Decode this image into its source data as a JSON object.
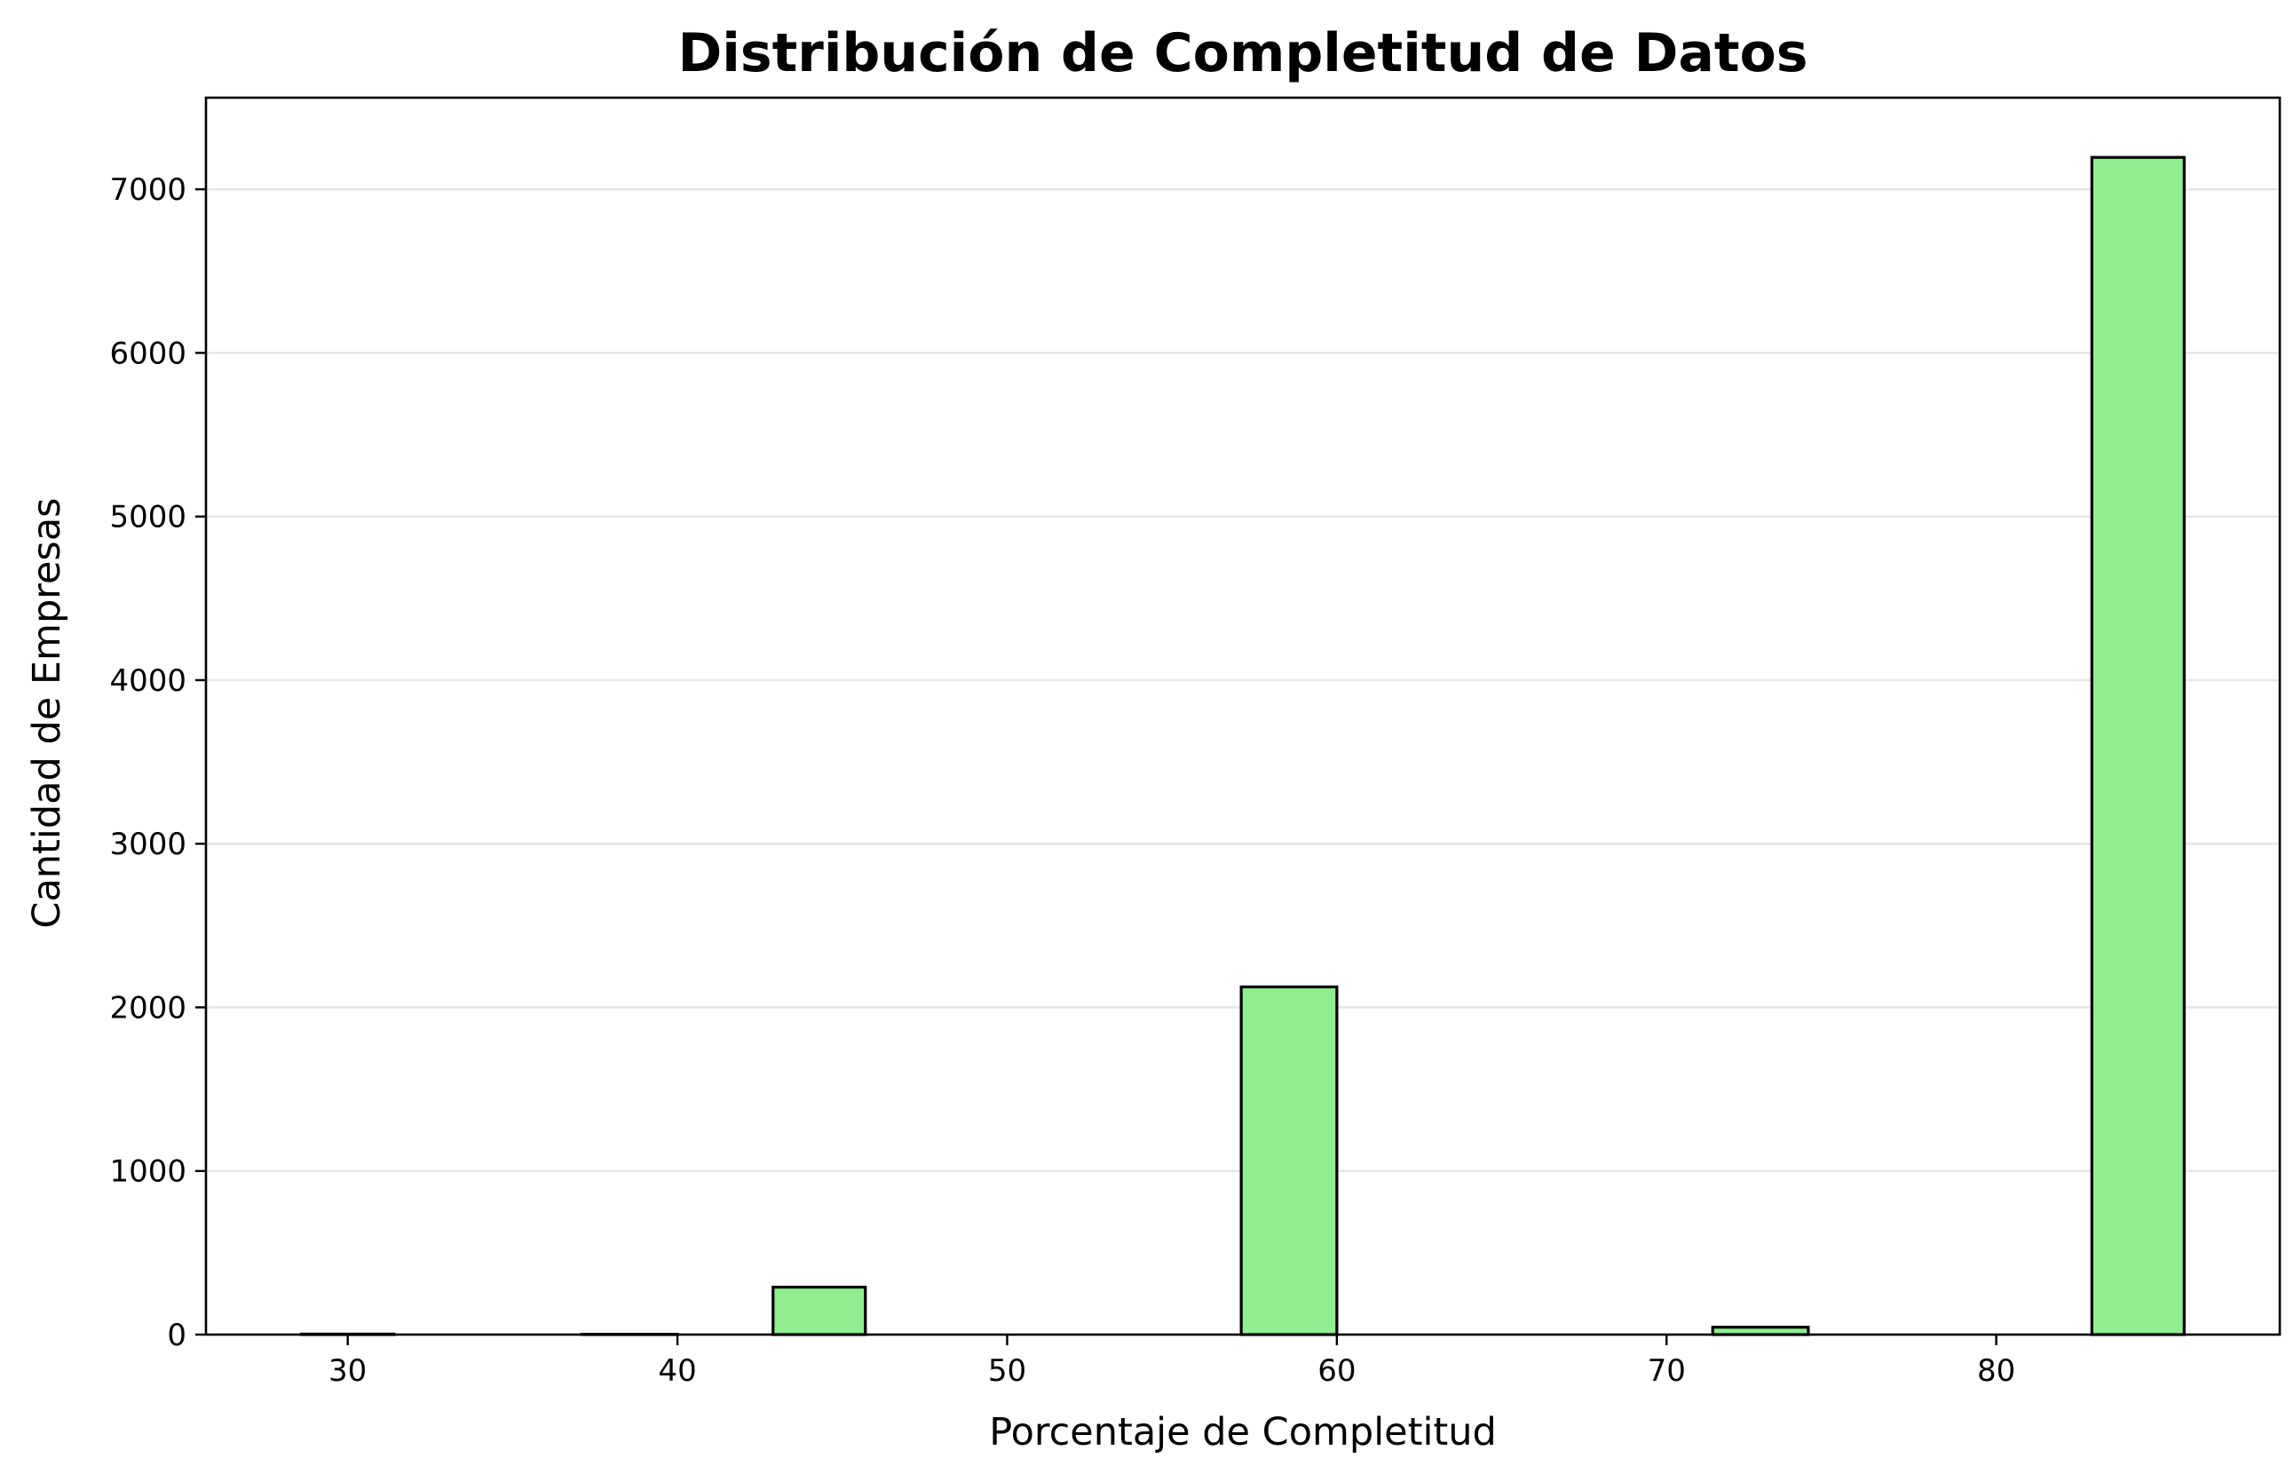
{
  "chart_data": {
    "type": "bar",
    "title": "Distribución de Completitud de Datos",
    "xlabel": "Porcentaje de Completitud",
    "ylabel": "Cantidad de Empresas",
    "xlim": [
      25.7,
      88.6
    ],
    "ylim": [
      0,
      7560
    ],
    "xticks": [
      30,
      40,
      50,
      60,
      70,
      80
    ],
    "yticks": [
      0,
      1000,
      2000,
      3000,
      4000,
      5000,
      6000,
      7000
    ],
    "grid": "y",
    "bins": [
      {
        "x_start": 28.6,
        "x_end": 31.4,
        "value": 3
      },
      {
        "x_start": 31.4,
        "x_end": 34.3,
        "value": 0
      },
      {
        "x_start": 34.3,
        "x_end": 37.1,
        "value": 0
      },
      {
        "x_start": 37.1,
        "x_end": 40.0,
        "value": 2
      },
      {
        "x_start": 40.0,
        "x_end": 42.9,
        "value": 0
      },
      {
        "x_start": 42.9,
        "x_end": 45.7,
        "value": 290
      },
      {
        "x_start": 45.7,
        "x_end": 48.6,
        "value": 0
      },
      {
        "x_start": 48.6,
        "x_end": 51.4,
        "value": 0
      },
      {
        "x_start": 51.4,
        "x_end": 54.3,
        "value": 0
      },
      {
        "x_start": 54.3,
        "x_end": 57.1,
        "value": 0
      },
      {
        "x_start": 57.1,
        "x_end": 60.0,
        "value": 2125
      },
      {
        "x_start": 60.0,
        "x_end": 62.9,
        "value": 0
      },
      {
        "x_start": 62.9,
        "x_end": 65.7,
        "value": 0
      },
      {
        "x_start": 65.7,
        "x_end": 68.6,
        "value": 0
      },
      {
        "x_start": 68.6,
        "x_end": 71.4,
        "value": 0
      },
      {
        "x_start": 71.4,
        "x_end": 74.3,
        "value": 45
      },
      {
        "x_start": 74.3,
        "x_end": 77.1,
        "value": 0
      },
      {
        "x_start": 77.1,
        "x_end": 80.0,
        "value": 0
      },
      {
        "x_start": 80.0,
        "x_end": 82.9,
        "value": 0
      },
      {
        "x_start": 82.9,
        "x_end": 85.7,
        "value": 7195
      }
    ],
    "bar_color": "#90ee90",
    "edge_color": "#000000"
  }
}
